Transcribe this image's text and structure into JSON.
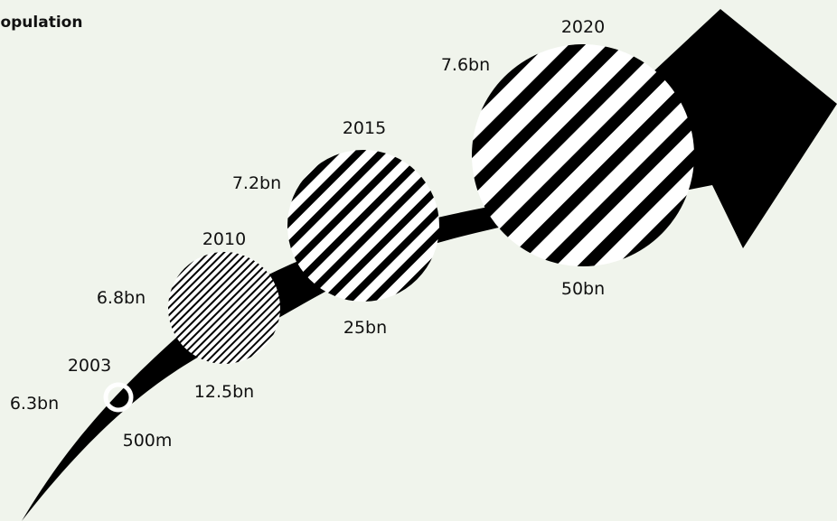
{
  "legend": {
    "population_label": "Population"
  },
  "colors": {
    "background": "#f0f4ec",
    "ink": "#000000",
    "stripe_light": "#ffffff"
  },
  "milestones": [
    {
      "year": "2003",
      "population": "6.3bn",
      "devices": "500m"
    },
    {
      "year": "2010",
      "population": "6.8bn",
      "devices": "12.5bn"
    },
    {
      "year": "2015",
      "population": "7.2bn",
      "devices": "25bn"
    },
    {
      "year": "2020",
      "population": "7.6bn",
      "devices": "50bn"
    }
  ]
}
